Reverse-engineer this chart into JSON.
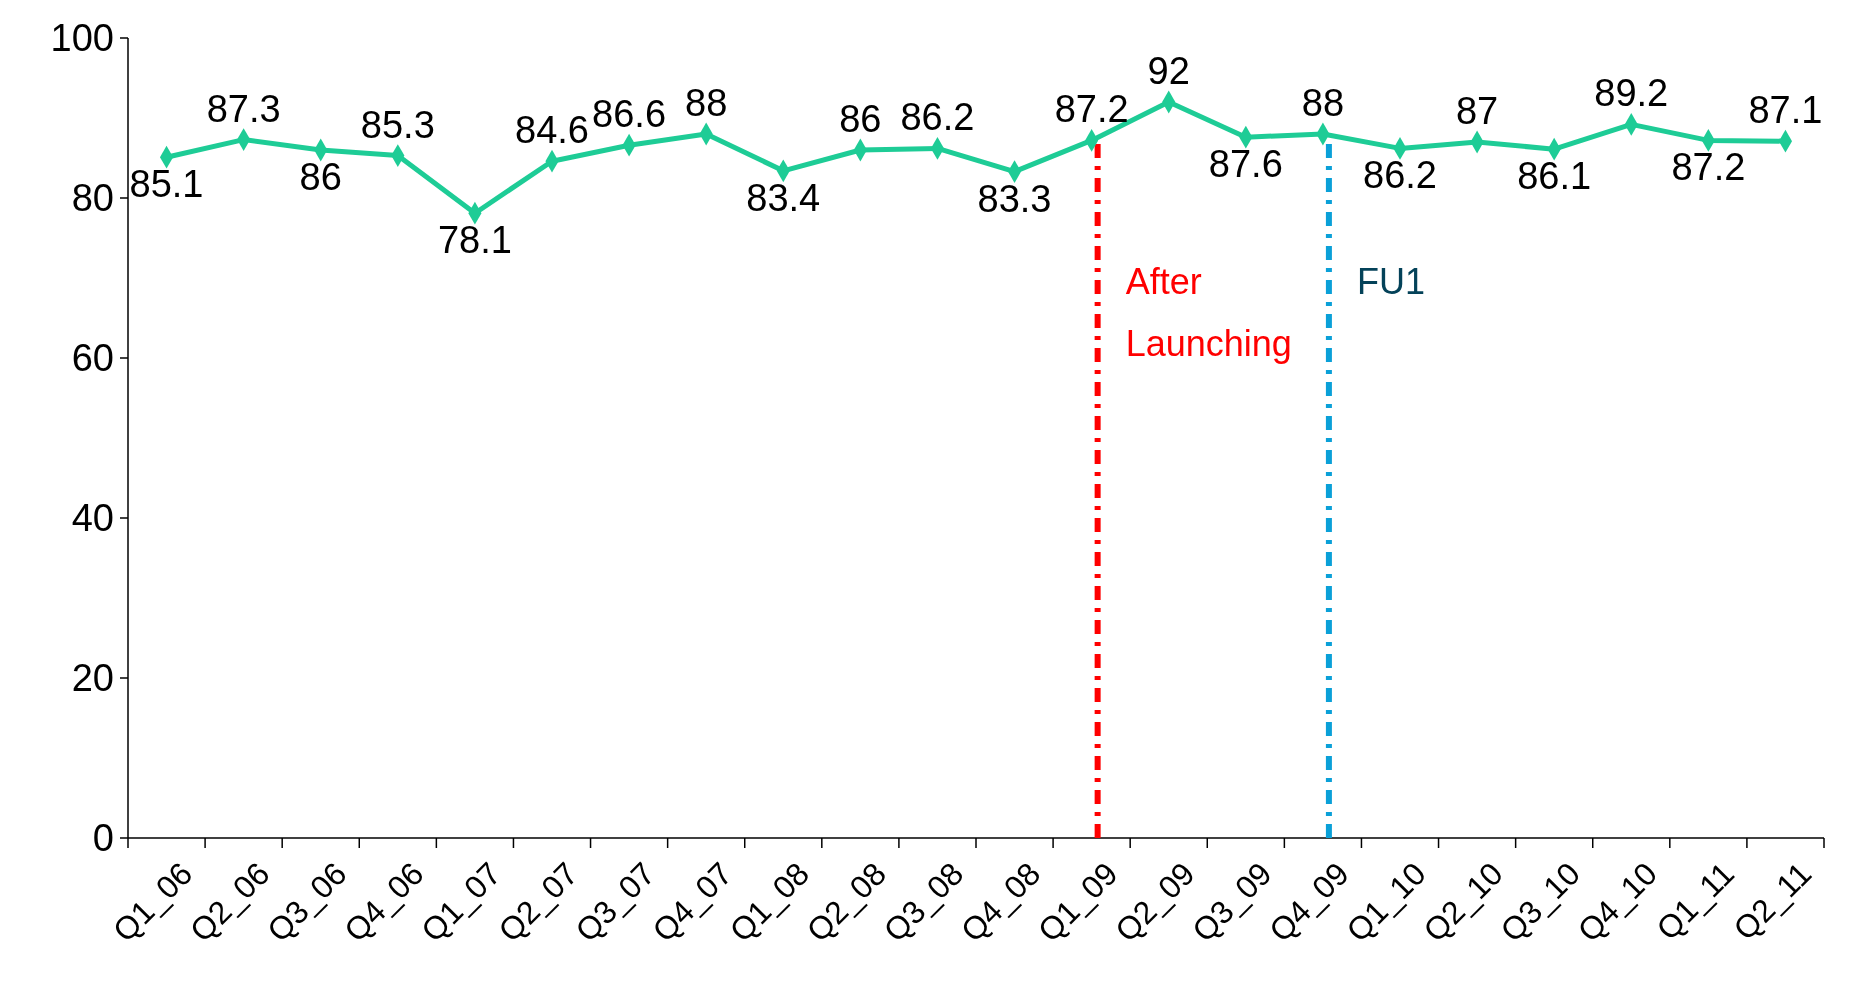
{
  "chart_data": {
    "type": "line",
    "categories": [
      "Q1_06",
      "Q2_06",
      "Q3_06",
      "Q4_06",
      "Q1_07",
      "Q2_07",
      "Q3_07",
      "Q4_07",
      "Q1_08",
      "Q2_08",
      "Q3_08",
      "Q4_08",
      "Q1_09",
      "Q2_09",
      "Q3_09",
      "Q4_09",
      "Q1_10",
      "Q2_10",
      "Q3_10",
      "Q4_10",
      "Q1_11",
      "Q2_11"
    ],
    "series": [
      {
        "color": "#1ecc96",
        "values": [
          85.1,
          87.3,
          86,
          85.3,
          78.1,
          84.6,
          86.6,
          88,
          83.4,
          86,
          86.2,
          83.3,
          87.2,
          92,
          87.6,
          88,
          86.2,
          87,
          86.1,
          89.2,
          87.2,
          87.1
        ]
      }
    ],
    "ylim": [
      0,
      100
    ],
    "yticks": [
      0,
      20,
      40,
      60,
      80,
      100
    ],
    "grid": false,
    "marker": "diamond",
    "line_style": "solid",
    "data_labels": true,
    "ref_lines": [
      {
        "axis": "x",
        "value": "Q1_09",
        "label": "After Launching",
        "color": "#ff0000",
        "line_style": "dashdot"
      },
      {
        "axis": "x",
        "value": "Q4_09",
        "label": "FU1",
        "color": "#0aa0d8",
        "line_style": "dashdot"
      }
    ]
  }
}
